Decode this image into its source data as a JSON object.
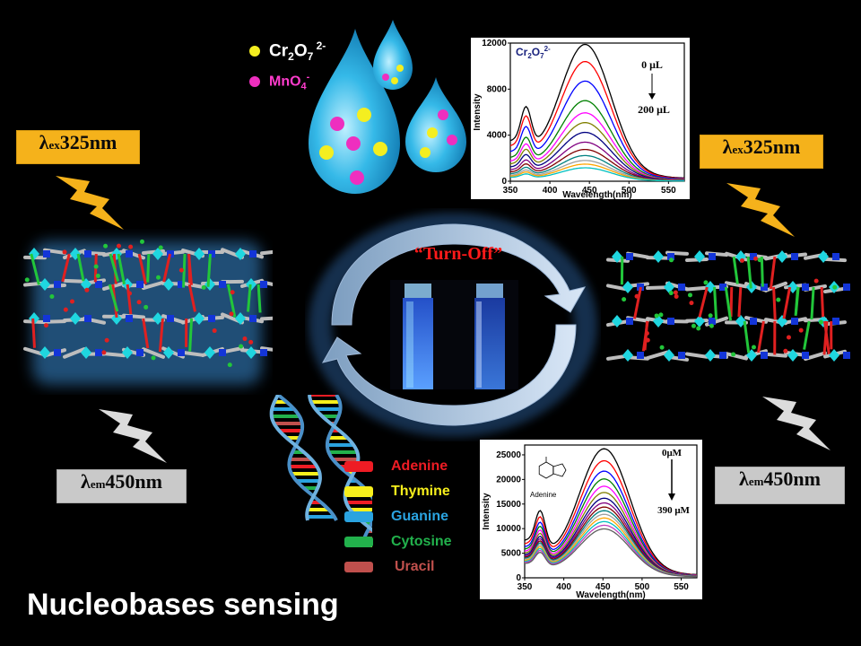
{
  "title": "Nucleobases sensing",
  "center_label": "“Turn-Off”",
  "excitation": {
    "prefix": "λ",
    "sub": "ex",
    "value": " 325nm"
  },
  "emission": {
    "prefix": "λ",
    "sub": "em",
    "value": " 450nm"
  },
  "ions": [
    {
      "base": "Cr",
      "s1": "2",
      "mid": "O",
      "s2": "7",
      "sup": " 2-",
      "color": "#f4ee20",
      "text_color": "#ffffff"
    },
    {
      "base": "MnO",
      "s1": "4",
      "mid": "",
      "s2": "",
      "sup": "-",
      "color": "#ee2fbf",
      "text_color": "#ff3ccd"
    }
  ],
  "nucleobases": [
    {
      "name": "Adenine",
      "color": "#ee1c24"
    },
    {
      "name": "Thymine",
      "color": "#f7ef1c"
    },
    {
      "name": "Guanine",
      "color": "#2aa3e0"
    },
    {
      "name": "Cytosine",
      "color": "#22b14c"
    },
    {
      "name": "Uracil",
      "color": "#c0504d"
    }
  ],
  "chart_data": [
    {
      "type": "line",
      "title": "Cr2O7 2-",
      "xlabel": "Wavelength(nm)",
      "ylabel": "Intensity",
      "xlim": [
        350,
        570
      ],
      "ylim": [
        0,
        12000
      ],
      "xticks": [
        350,
        400,
        450,
        500,
        550
      ],
      "yticks": [
        0,
        4000,
        8000,
        12000
      ],
      "annotation_top": "0 μL",
      "annotation_bottom": "200 μL",
      "grid": false,
      "peak_x": 445,
      "series_peaks": [
        11200,
        9800,
        8200,
        6600,
        5600,
        4800,
        4000,
        3200,
        2600,
        2100,
        1700,
        1400,
        1100
      ],
      "series_colors": [
        "#000000",
        "#ff0000",
        "#0000ff",
        "#008000",
        "#ff00ff",
        "#808000",
        "#000080",
        "#800080",
        "#800000",
        "#008080",
        "#a0a0a0",
        "#ffa500",
        "#00c0c0"
      ]
    },
    {
      "type": "line",
      "title": "Adenine",
      "xlabel": "Wavelength(nm)",
      "ylabel": "Intensity",
      "xlim": [
        350,
        570
      ],
      "ylim": [
        0,
        27000
      ],
      "xticks": [
        350,
        400,
        450,
        500,
        550
      ],
      "yticks": [
        0,
        5000,
        10000,
        15000,
        20000,
        25000
      ],
      "annotation_top": "0μM",
      "annotation_bottom": "390 μM",
      "molecule_label": "Adenine",
      "grid": false,
      "peak_x": 452,
      "series_peaks": [
        24800,
        22500,
        20500,
        19000,
        17600,
        16400,
        15300,
        14400,
        13600,
        12900,
        12200,
        11500,
        10800,
        10100,
        9400
      ],
      "series_colors": [
        "#000000",
        "#ff0000",
        "#0000ff",
        "#008000",
        "#ff00ff",
        "#808000",
        "#000080",
        "#800080",
        "#800000",
        "#008080",
        "#a0a0a0",
        "#ffa500",
        "#00c0c0",
        "#c040c0",
        "#606060"
      ]
    }
  ]
}
